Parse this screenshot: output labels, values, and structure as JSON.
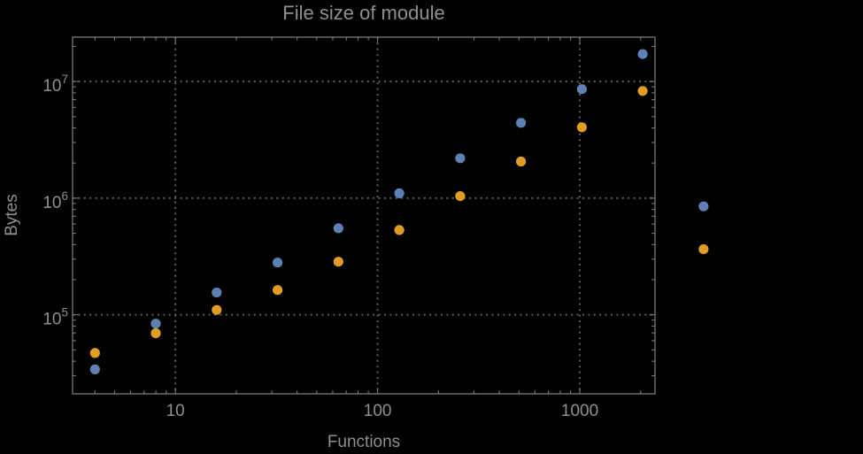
{
  "chart_data": {
    "type": "scatter",
    "title": "File size of module",
    "xlabel": "Functions",
    "ylabel": "Bytes",
    "x_scale": "log",
    "y_scale": "log",
    "xlim": [
      3.1,
      2355
    ],
    "ylim": [
      21000,
      24000000
    ],
    "grid": "dotted gridlines at labeled major ticks",
    "legend": "none",
    "x": [
      4,
      8,
      16,
      32,
      64,
      128,
      256,
      512,
      1024,
      2048,
      4096
    ],
    "series": [
      {
        "name": "blue",
        "color": "#5e81b5",
        "values": [
          34000,
          84000,
          155000,
          280000,
          552000,
          1100000,
          2200000,
          4420000,
          8600000,
          17200000,
          850000
        ]
      },
      {
        "name": "orange",
        "color": "#e19c24",
        "values": [
          47000,
          69500,
          110000,
          163000,
          285000,
          533000,
          1040000,
          2060000,
          4050000,
          8300000,
          365000
        ]
      }
    ],
    "x_ticks_labeled": [
      {
        "value": 10,
        "label": "10"
      },
      {
        "value": 100,
        "label": "100"
      },
      {
        "value": 1000,
        "label": "1000"
      }
    ],
    "y_ticks_labeled": [
      {
        "value": 100000,
        "base": "10",
        "exp": "5"
      },
      {
        "value": 1000000,
        "base": "10",
        "exp": "6"
      },
      {
        "value": 10000000,
        "base": "10",
        "exp": "7"
      }
    ],
    "note": "points at x=4096 drawn outside the plot frame (no plot-range clipping)"
  },
  "colors": {
    "background": "#000000",
    "text": "#8f8f8f",
    "frame": "#787878",
    "grid": "#5e5e5e",
    "series_blue": "#5e81b5",
    "series_orange": "#e19c24"
  }
}
